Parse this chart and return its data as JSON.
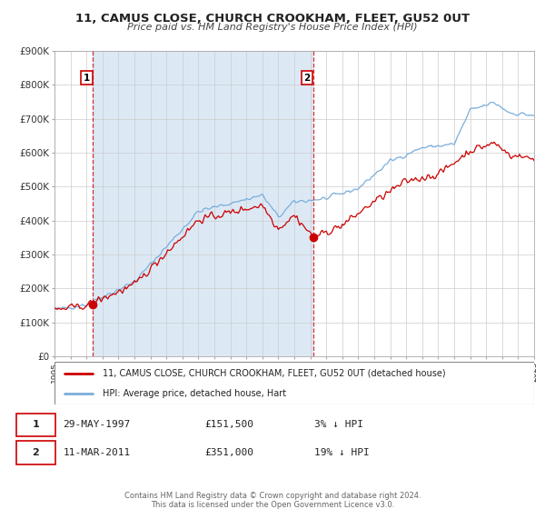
{
  "title": "11, CAMUS CLOSE, CHURCH CROOKHAM, FLEET, GU52 0UT",
  "subtitle": "Price paid vs. HM Land Registry's House Price Index (HPI)",
  "hpi_color": "#7aaedb",
  "price_color": "#cc0000",
  "shade_color": "#dce9f5",
  "bg_color": "#ffffff",
  "plot_bg": "#ffffff",
  "grid_color": "#cccccc",
  "ylim": [
    0,
    900000
  ],
  "yticks": [
    0,
    100000,
    200000,
    300000,
    400000,
    500000,
    600000,
    700000,
    800000,
    900000
  ],
  "sale1_date": 1997.41,
  "sale1_price": 151500,
  "sale1_label": "1",
  "sale2_date": 2011.19,
  "sale2_price": 351000,
  "sale2_label": "2",
  "legend_line1": "11, CAMUS CLOSE, CHURCH CROOKHAM, FLEET, GU52 0UT (detached house)",
  "legend_line2": "HPI: Average price, detached house, Hart",
  "table_row1_num": "1",
  "table_row1_date": "29-MAY-1997",
  "table_row1_price": "£151,500",
  "table_row1_hpi": "3% ↓ HPI",
  "table_row2_num": "2",
  "table_row2_date": "11-MAR-2011",
  "table_row2_price": "£351,000",
  "table_row2_hpi": "19% ↓ HPI",
  "footer1": "Contains HM Land Registry data © Crown copyright and database right 2024.",
  "footer2": "This data is licensed under the Open Government Licence v3.0.",
  "xmin": 1995,
  "xmax": 2025
}
